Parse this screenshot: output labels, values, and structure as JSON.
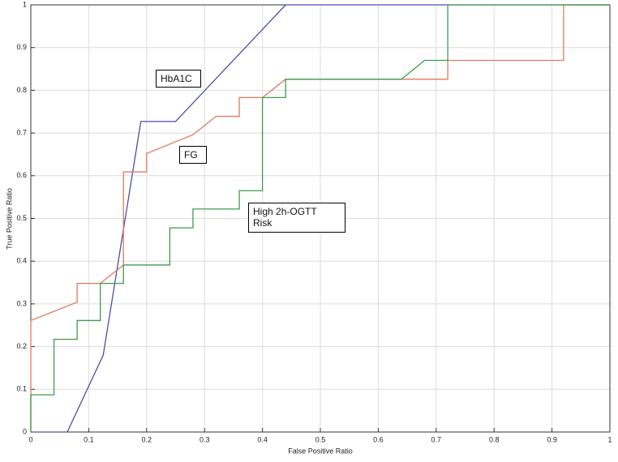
{
  "chart_data": {
    "type": "line",
    "xlabel": "False Positive Ratio",
    "ylabel": "True Positive Ratio",
    "xlim": [
      0,
      1
    ],
    "ylim": [
      0,
      1
    ],
    "xticks": [
      0,
      0.1,
      0.2,
      0.3,
      0.4,
      0.5,
      0.6,
      0.7,
      0.8,
      0.9,
      1
    ],
    "yticks": [
      0,
      0.1,
      0.2,
      0.3,
      0.4,
      0.5,
      0.6,
      0.7,
      0.8,
      0.9,
      1
    ],
    "grid": true,
    "series": [
      {
        "name": "HbA1C",
        "color": "#4b4fa6",
        "x": [
          0,
          0.063,
          0.125,
          0.19,
          0.25,
          0.44,
          1
        ],
        "values": [
          0,
          0,
          0.18,
          0.727,
          0.727,
          1,
          1
        ]
      },
      {
        "name": "FG",
        "color": "#e0795c",
        "x": [
          0,
          0,
          0.08,
          0.08,
          0.12,
          0.16,
          0.16,
          0.2,
          0.2,
          0.28,
          0.32,
          0.36,
          0.36,
          0.4,
          0.44,
          0.72,
          0.72,
          0.92,
          0.92,
          1
        ],
        "values": [
          0,
          0.261,
          0.304,
          0.348,
          0.348,
          0.391,
          0.609,
          0.609,
          0.652,
          0.696,
          0.739,
          0.739,
          0.783,
          0.783,
          0.826,
          0.826,
          0.87,
          0.87,
          1,
          1
        ]
      },
      {
        "name": "High 2h-OGTT Risk",
        "color": "#3f9a4f",
        "x": [
          0,
          0,
          0.04,
          0.04,
          0.08,
          0.08,
          0.12,
          0.12,
          0.16,
          0.16,
          0.24,
          0.24,
          0.28,
          0.28,
          0.36,
          0.36,
          0.4,
          0.4,
          0.44,
          0.44,
          0.64,
          0.68,
          0.72,
          0.72,
          1
        ],
        "values": [
          0,
          0.087,
          0.087,
          0.217,
          0.217,
          0.261,
          0.261,
          0.348,
          0.348,
          0.391,
          0.391,
          0.478,
          0.478,
          0.522,
          0.522,
          0.565,
          0.565,
          0.783,
          0.783,
          0.826,
          0.826,
          0.87,
          0.87,
          1,
          1
        ]
      }
    ]
  }
}
